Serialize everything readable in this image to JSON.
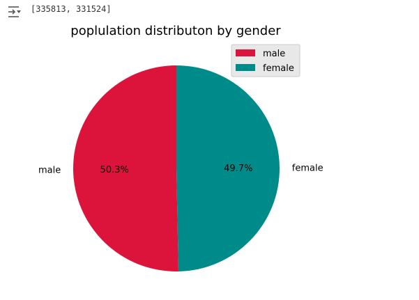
{
  "output": {
    "text": "[335813, 331524]",
    "icon": "output-toggle-icon"
  },
  "chart_data": {
    "type": "pie",
    "title": "poplulation distributon by gender",
    "labels": [
      "male",
      "female"
    ],
    "values": [
      335813,
      331524
    ],
    "percent_labels": [
      "50.3%",
      "49.7%"
    ],
    "colors": [
      "#dc143c",
      "#008b8b"
    ],
    "start_angle": 90,
    "legend": {
      "entries": [
        "male",
        "female"
      ],
      "placement": "top-right"
    }
  }
}
